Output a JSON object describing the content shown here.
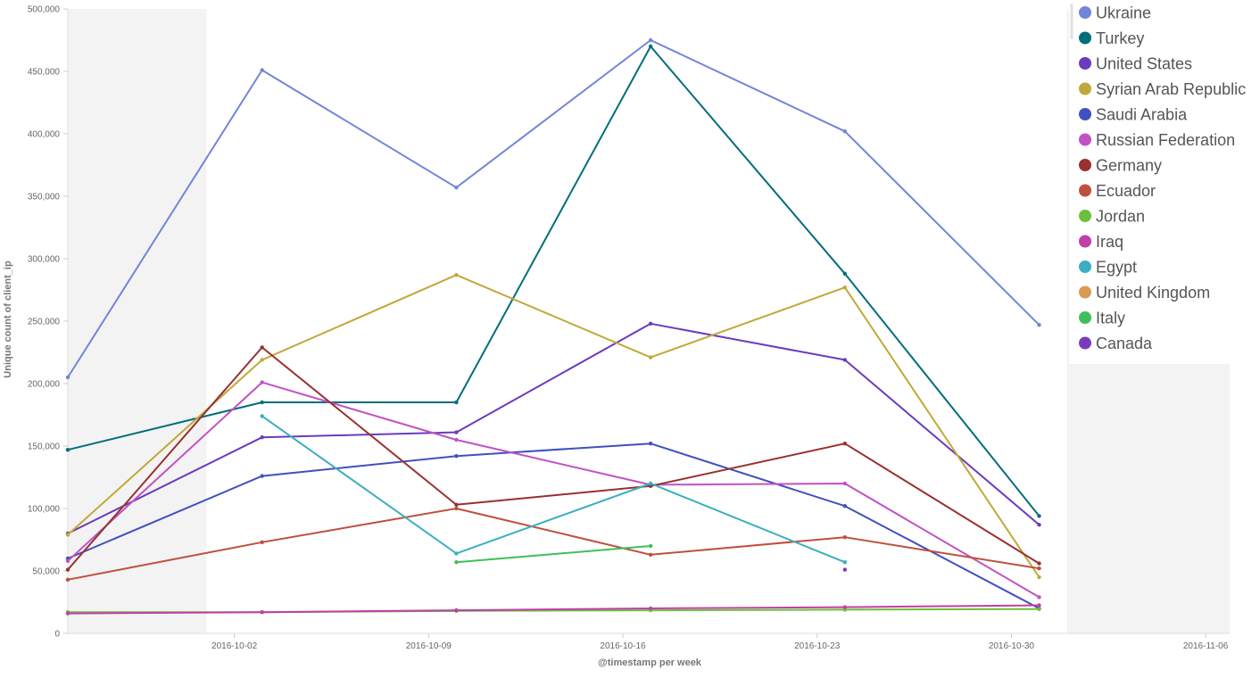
{
  "chart_data": {
    "type": "line",
    "xlabel": "@timestamp per week",
    "ylabel": "Unique count of client_ip",
    "ylim": [
      0,
      500000
    ],
    "x_ticks": [
      "2016-10-02",
      "2016-10-09",
      "2016-10-16",
      "2016-10-23",
      "2016-10-30",
      "2016-11-06"
    ],
    "y_ticks": [
      "0",
      "50,000",
      "100,000",
      "150,000",
      "200,000",
      "250,000",
      "300,000",
      "350,000",
      "400,000",
      "450,000",
      "500,000"
    ],
    "x": [
      "2016-09-26",
      "2016-10-03",
      "2016-10-10",
      "2016-10-17",
      "2016-10-24",
      "2016-10-31"
    ],
    "shaded_before": "2016-10-01",
    "shaded_after": "2016-11-01",
    "legend_position": "top-right",
    "series": [
      {
        "name": "Ukraine",
        "color": "#7385d6",
        "values": [
          205000,
          451000,
          357000,
          475000,
          402000,
          247000
        ]
      },
      {
        "name": "Turkey",
        "color": "#006e7a",
        "values": [
          147000,
          185000,
          185000,
          470000,
          288000,
          94000
        ]
      },
      {
        "name": "United States",
        "color": "#6a3bbd",
        "values": [
          80000,
          157000,
          161000,
          248000,
          219000,
          87000
        ]
      },
      {
        "name": "Syrian Arab Republic",
        "color": "#c0a93a",
        "values": [
          79000,
          219000,
          287000,
          221000,
          277000,
          45000
        ]
      },
      {
        "name": "Saudi Arabia",
        "color": "#4150bf",
        "values": [
          60000,
          126000,
          142000,
          152000,
          102000,
          20000
        ]
      },
      {
        "name": "Russian Federation",
        "color": "#c052c4",
        "values": [
          58000,
          201000,
          155000,
          119000,
          120000,
          29000
        ]
      },
      {
        "name": "Germany",
        "color": "#98312f",
        "values": [
          51000,
          229000,
          103000,
          118000,
          152000,
          56000
        ]
      },
      {
        "name": "Ecuador",
        "color": "#bf4f3d",
        "values": [
          43000,
          73000,
          100000,
          63000,
          77000,
          52000
        ]
      },
      {
        "name": "Jordan",
        "color": "#6bbf3a",
        "values": [
          17000,
          17000,
          18000,
          18500,
          19000,
          19500
        ]
      },
      {
        "name": "Iraq",
        "color": "#c03fa8",
        "values": [
          16000,
          17000,
          18500,
          20000,
          21000,
          22500
        ]
      },
      {
        "name": "Egypt",
        "color": "#3aafbf",
        "values": [
          null,
          174000,
          64000,
          120000,
          57000,
          null
        ]
      },
      {
        "name": "United Kingdom",
        "color": "#d99a54",
        "values": [
          null,
          null,
          null,
          null,
          null,
          null
        ]
      },
      {
        "name": "Italy",
        "color": "#3fbf5a",
        "values": [
          null,
          null,
          57000,
          70000,
          null,
          null
        ]
      },
      {
        "name": "Canada",
        "color": "#7a3ac0",
        "values": [
          null,
          null,
          null,
          null,
          51000,
          null
        ]
      }
    ]
  }
}
